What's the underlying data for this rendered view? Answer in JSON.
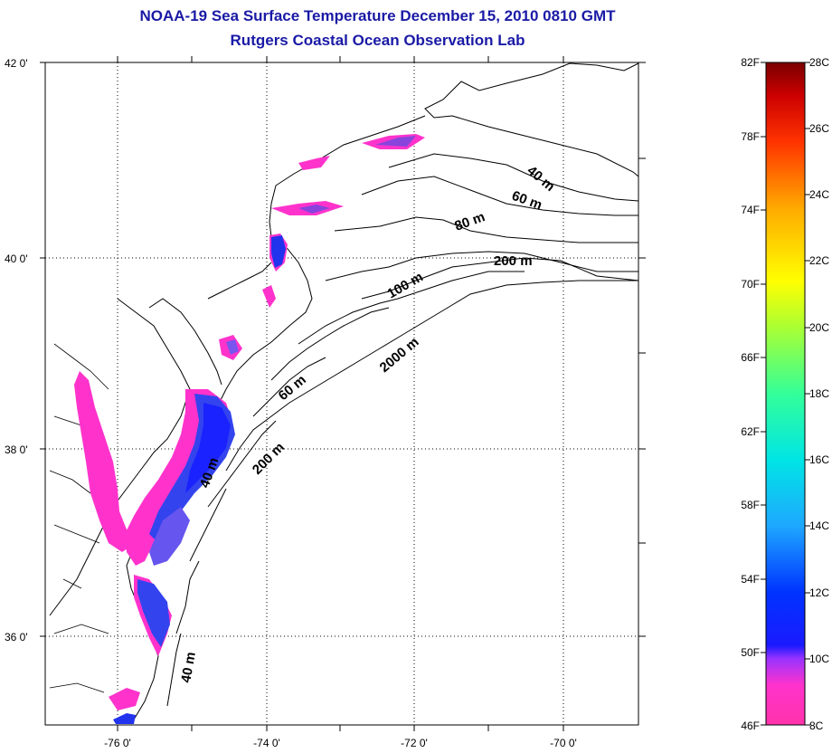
{
  "title_line1": "NOAA-19 Sea Surface Temperature December 15, 2010 0810 GMT",
  "title_line2": "Rutgers Coastal Ocean Observation Lab",
  "lat_labels": [
    "42 0'",
    "40 0'",
    "38 0'",
    "36 0'"
  ],
  "lon_labels": [
    "-76 0'",
    "-74 0'",
    "-72 0'",
    "-70 0'"
  ],
  "contour_labels": [
    "40 m",
    "60 m",
    "80 m",
    "200 m",
    "100 m",
    "2000 m",
    "60 m",
    "200 m",
    "40 m",
    "40 m"
  ],
  "colorbar": {
    "fahrenheit_labels": [
      "82F",
      "78F",
      "74F",
      "70F",
      "66F",
      "62F",
      "58F",
      "54F",
      "50F",
      "46F"
    ],
    "celsius_labels": [
      "28C",
      "26C",
      "24C",
      "22C",
      "20C",
      "18C",
      "16C",
      "14C",
      "12C",
      "10C",
      "8C"
    ],
    "gradient_stops": [
      "#ff33aa",
      "#9933ff",
      "#1a1aff",
      "#0066ff",
      "#1ea7ff",
      "#00e5e5",
      "#33ff99",
      "#aaff33",
      "#ffff00",
      "#ffaa00",
      "#ff4400",
      "#d40000",
      "#7a0000"
    ]
  }
}
